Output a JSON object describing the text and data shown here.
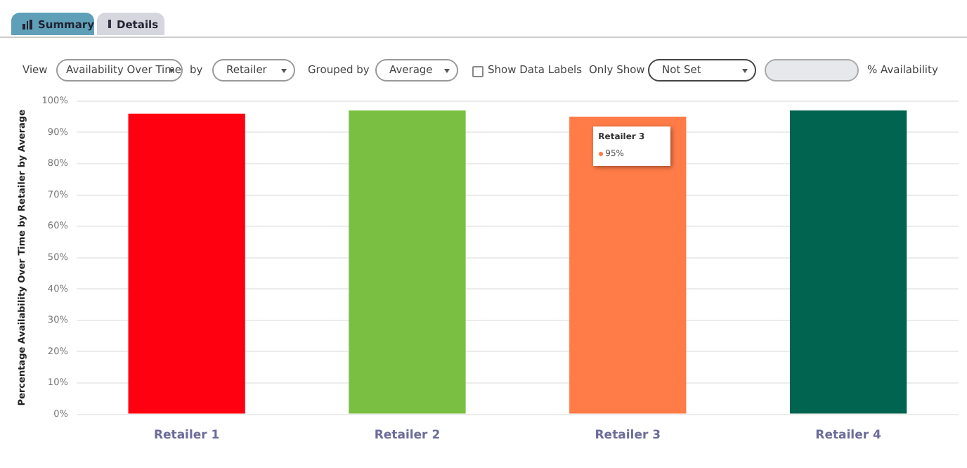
{
  "chart_data": {
    "type": "bar",
    "ylabel": "Percentage Availability Over Time by Retailer by Average",
    "categories": [
      "Retailer 1",
      "Retailer 2",
      "Retailer 3",
      "Retailer 4"
    ],
    "values": [
      96,
      97,
      95,
      97
    ],
    "colors": [
      "#ff0010",
      "#7bbf42",
      "#ff7b47",
      "#006450"
    ],
    "value_labels": [
      null,
      null,
      "95%",
      null
    ],
    "ylim": [
      0,
      100
    ],
    "yticks": [
      {
        "value": 0,
        "label": "0%"
      },
      {
        "value": 10,
        "label": "10%"
      },
      {
        "value": 20,
        "label": "20%"
      },
      {
        "value": 30,
        "label": "30%"
      },
      {
        "value": 40,
        "label": "40%"
      },
      {
        "value": 50,
        "label": "50%"
      },
      {
        "value": 60,
        "label": "60%"
      },
      {
        "value": 70,
        "label": "70%"
      },
      {
        "value": 80,
        "label": "80%"
      },
      {
        "value": 90,
        "label": "90%"
      },
      {
        "value": 100,
        "label": "100%"
      }
    ],
    "grid": "y",
    "legend": false,
    "annotations": [
      "Summary",
      "Details",
      "View",
      "Availability Over Time",
      "by",
      "Retailer",
      "Grouped by",
      "Average",
      "Show Data Labels",
      "Only Show",
      "Not Set",
      "% Availability",
      {
        "text": "Retailer 3",
        "x": "Retailer 3",
        "y": 95
      }
    ]
  }
}
